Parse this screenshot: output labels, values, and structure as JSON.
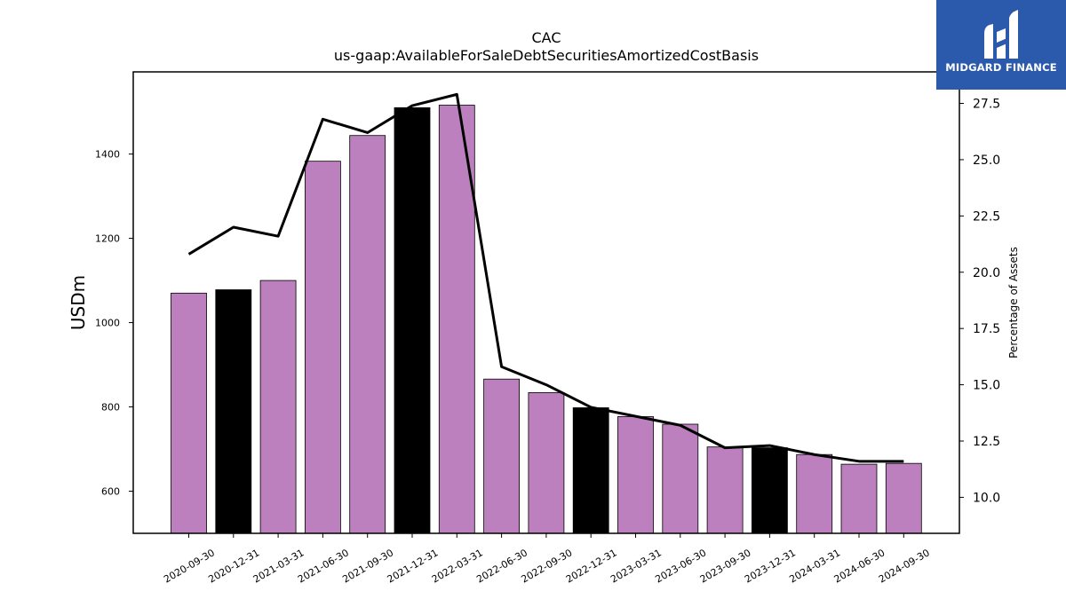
{
  "chart_data": {
    "type": "bar",
    "title": "CAC",
    "subtitle": "us-gaap:AvailableForSaleDebtSecuritiesAmortizedCostBasis",
    "ylabel": "USDm",
    "y2label": "Percentage of Assets",
    "ylim": [
      500,
      1595
    ],
    "y2lim": [
      8.4,
      28.9
    ],
    "yticks": [
      600,
      800,
      1000,
      1200,
      1400
    ],
    "y2ticks": [
      "10.0",
      "12.5",
      "15.0",
      "17.5",
      "20.0",
      "22.5",
      "25.0",
      "27.5"
    ],
    "categories": [
      "2020-09-30",
      "2020-12-31",
      "2021-03-31",
      "2021-06-30",
      "2021-09-30",
      "2021-12-31",
      "2022-03-31",
      "2022-06-30",
      "2022-09-30",
      "2022-12-31",
      "2023-03-31",
      "2023-06-30",
      "2023-09-30",
      "2023-12-31",
      "2024-03-31",
      "2024-06-30",
      "2024-09-30"
    ],
    "values": [
      1070,
      1078,
      1100,
      1383,
      1444,
      1510,
      1516,
      866,
      834,
      798,
      777,
      759,
      705,
      703,
      687,
      664,
      666
    ],
    "bar_colors": [
      "#bb80bd",
      "#000000",
      "#bb80bd",
      "#bb80bd",
      "#bb80bd",
      "#000000",
      "#bb80bd",
      "#bb80bd",
      "#bb80bd",
      "#000000",
      "#bb80bd",
      "#bb80bd",
      "#bb80bd",
      "#000000",
      "#bb80bd",
      "#bb80bd",
      "#bb80bd"
    ],
    "line_values": [
      20.8,
      22.0,
      21.6,
      26.8,
      26.2,
      27.4,
      27.9,
      15.8,
      15.0,
      14.0,
      13.6,
      13.2,
      12.2,
      12.3,
      11.9,
      11.6,
      11.6
    ],
    "line_color": "#000000"
  },
  "logo": {
    "text": "MIDGARD FINANCE",
    "background": "#2b5aad"
  }
}
